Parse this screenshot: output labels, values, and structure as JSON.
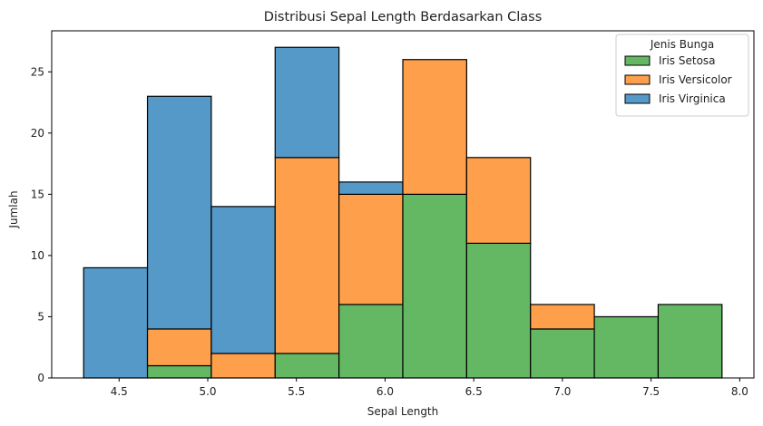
{
  "chart_data": {
    "type": "bar",
    "stacked": true,
    "title": "Distribusi Sepal Length Berdasarkan Class",
    "xlabel": "Sepal Length",
    "ylabel": "Jumlah",
    "xlim": [
      4.12,
      8.08
    ],
    "ylim": [
      0,
      28.35
    ],
    "x_ticks": [
      4.5,
      5.0,
      5.5,
      6.0,
      6.5,
      7.0,
      7.5,
      8.0
    ],
    "x_tick_labels": [
      "4.5",
      "5.0",
      "5.5",
      "6.0",
      "6.5",
      "7.0",
      "7.5",
      "8.0"
    ],
    "y_ticks": [
      0,
      5,
      10,
      15,
      20,
      25
    ],
    "y_tick_labels": [
      "0",
      "5",
      "10",
      "15",
      "20",
      "25"
    ],
    "bin_edges": [
      4.3,
      4.66,
      5.02,
      5.38,
      5.74,
      6.1,
      6.46,
      6.82,
      7.18,
      7.54,
      7.9
    ],
    "series": [
      {
        "name": "Iris Setosa",
        "color": "#64b864",
        "values": [
          0,
          1,
          0,
          2,
          6,
          15,
          11,
          4,
          5,
          6
        ]
      },
      {
        "name": "Iris Versicolor",
        "color": "#fe9f4b",
        "values": [
          0,
          3,
          2,
          16,
          9,
          11,
          7,
          2,
          0,
          0
        ]
      },
      {
        "name": "Iris Virginica",
        "color": "#5599c8",
        "values": [
          9,
          19,
          12,
          9,
          1,
          0,
          0,
          0,
          0,
          0
        ]
      }
    ],
    "legend": {
      "title": "Jenis Bunga",
      "position": "top-right"
    },
    "grid": false
  }
}
